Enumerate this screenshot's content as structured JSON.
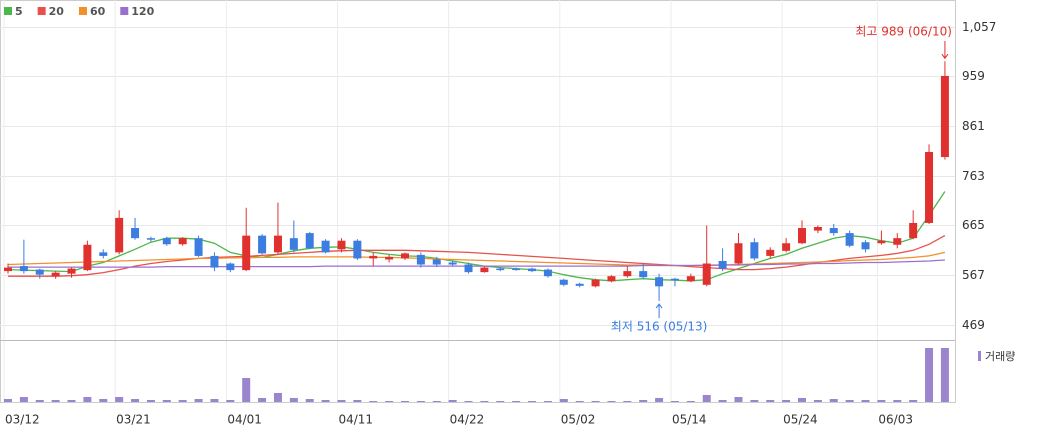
{
  "chart_data": {
    "type": "candlestick",
    "categories": [
      "03/12",
      null,
      null,
      null,
      null,
      null,
      null,
      "03/21",
      null,
      null,
      null,
      null,
      null,
      null,
      "04/01",
      null,
      null,
      null,
      null,
      null,
      null,
      "04/11",
      null,
      null,
      null,
      null,
      null,
      null,
      "04/22",
      null,
      null,
      null,
      null,
      null,
      null,
      "05/02",
      null,
      null,
      null,
      null,
      null,
      null,
      "05/14",
      null,
      null,
      null,
      null,
      null,
      null,
      "05/24",
      null,
      null,
      null,
      null,
      null,
      "06/03",
      null,
      null,
      null,
      null
    ],
    "open": [
      575,
      585,
      578,
      565,
      570,
      577,
      612,
      612,
      660,
      640,
      640,
      628,
      640,
      605,
      590,
      577,
      645,
      612,
      640,
      650,
      635,
      618,
      635,
      600,
      598,
      600,
      607,
      598,
      592,
      588,
      573,
      580,
      580,
      580,
      578,
      558,
      550,
      545,
      555,
      565,
      575,
      563,
      560,
      555,
      548,
      595,
      590,
      632,
      605,
      615,
      630,
      655,
      660,
      650,
      632,
      630,
      627,
      640,
      670,
      800
    ],
    "high": [
      590,
      637,
      580,
      575,
      582,
      635,
      618,
      695,
      680,
      643,
      643,
      642,
      645,
      612,
      592,
      700,
      648,
      710,
      675,
      652,
      638,
      640,
      638,
      612,
      607,
      612,
      612,
      603,
      596,
      592,
      585,
      583,
      582,
      582,
      580,
      560,
      552,
      560,
      567,
      585,
      590,
      570,
      562,
      570,
      665,
      620,
      650,
      640,
      622,
      640,
      675,
      665,
      668,
      655,
      636,
      655,
      650,
      695,
      825,
      989
    ],
    "low": [
      570,
      570,
      560,
      560,
      562,
      575,
      600,
      608,
      637,
      633,
      625,
      625,
      603,
      575,
      573,
      575,
      608,
      608,
      612,
      618,
      610,
      612,
      597,
      585,
      592,
      597,
      582,
      583,
      585,
      570,
      572,
      575,
      576,
      573,
      562,
      545,
      543,
      543,
      553,
      562,
      560,
      516,
      545,
      553,
      545,
      575,
      588,
      596,
      600,
      612,
      628,
      650,
      645,
      622,
      612,
      627,
      620,
      638,
      668,
      795
    ],
    "close": [
      582,
      575,
      568,
      572,
      580,
      627,
      605,
      680,
      640,
      637,
      628,
      640,
      605,
      582,
      577,
      645,
      610,
      645,
      617,
      620,
      612,
      635,
      600,
      605,
      603,
      610,
      588,
      588,
      588,
      573,
      582,
      577,
      578,
      575,
      565,
      548,
      546,
      558,
      565,
      575,
      563,
      545,
      558,
      565,
      590,
      580,
      630,
      600,
      617,
      630,
      660,
      662,
      650,
      625,
      618,
      635,
      640,
      670,
      810,
      960
    ],
    "up_color": "#e0312e",
    "down_color": "#3b7de0",
    "series": [
      {
        "name": "5",
        "color": "#4cb84c",
        "values": [
          578,
          577,
          576,
          575,
          574,
          585,
          592,
          605,
          618,
          632,
          640,
          640,
          638,
          630,
          612,
          605,
          602,
          608,
          615,
          620,
          622,
          623,
          618,
          612,
          608,
          605,
          604,
          600,
          595,
          590,
          585,
          582,
          580,
          578,
          575,
          568,
          562,
          558,
          556,
          558,
          560,
          558,
          557,
          556,
          558,
          570,
          580,
          590,
          600,
          608,
          620,
          630,
          640,
          645,
          642,
          635,
          630,
          640,
          685,
          732
        ]
      },
      {
        "name": "20",
        "color": "#e8504a",
        "values": [
          565,
          565,
          565,
          565,
          566,
          568,
          572,
          578,
          585,
          590,
          594,
          597,
          600,
          602,
          603,
          604,
          606,
          608,
          610,
          612,
          614,
          615,
          616,
          616,
          616,
          616,
          615,
          614,
          613,
          612,
          610,
          608,
          606,
          604,
          602,
          600,
          598,
          596,
          594,
          592,
          590,
          588,
          586,
          584,
          582,
          580,
          578,
          578,
          580,
          583,
          587,
          592,
          596,
          600,
          603,
          606,
          610,
          616,
          628,
          645
        ]
      },
      {
        "name": "60",
        "color": "#f2902a",
        "values": [
          588,
          589,
          590,
          591,
          592,
          593,
          594,
          595,
          596,
          597,
          598,
          599,
          600,
          600,
          601,
          601,
          602,
          602,
          603,
          603,
          603,
          603,
          603,
          602,
          602,
          601,
          600,
          599,
          598,
          597,
          596,
          595,
          594,
          593,
          592,
          591,
          590,
          589,
          588,
          587,
          587,
          586,
          586,
          586,
          587,
          587,
          588,
          589,
          590,
          591,
          592,
          593,
          594,
          596,
          597,
          598,
          600,
          602,
          605,
          612
        ]
      },
      {
        "name": "120",
        "color": "#9b6fd0",
        "values": [
          583,
          583,
          583,
          583,
          583,
          583,
          583,
          583,
          583,
          583,
          584,
          584,
          584,
          584,
          584,
          584,
          584,
          584,
          584,
          584,
          585,
          585,
          585,
          585,
          585,
          585,
          585,
          585,
          585,
          585,
          585,
          585,
          585,
          585,
          585,
          585,
          585,
          585,
          585,
          585,
          586,
          586,
          586,
          586,
          586,
          587,
          587,
          588,
          588,
          589,
          589,
          590,
          590,
          591,
          592,
          592,
          593,
          594,
          595,
          597
        ]
      }
    ],
    "volume": {
      "name": "거래량",
      "color": "#9b85cf",
      "values": [
        3,
        5,
        2,
        2,
        2,
        5,
        3,
        5,
        3,
        2,
        2,
        2,
        3,
        3,
        2,
        24,
        4,
        9,
        4,
        3,
        2,
        2,
        2,
        1,
        1,
        1,
        1,
        1,
        2,
        1,
        1,
        1,
        1,
        1,
        1,
        3,
        1,
        1,
        1,
        1,
        2,
        4,
        1,
        1,
        7,
        2,
        5,
        2,
        2,
        2,
        4,
        2,
        3,
        2,
        2,
        2,
        2,
        2,
        54,
        54
      ]
    },
    "ylim": [
      449,
      1094
    ],
    "yticks": [
      {
        "value": 1057,
        "label": "1,057"
      },
      959,
      861,
      763,
      665,
      567,
      469
    ],
    "grid": true,
    "annotations": [
      {
        "text": "최고 989 (06/10)",
        "index": 59,
        "kind": "high"
      },
      {
        "text": "최저 516 (05/13)",
        "index": 41,
        "kind": "low"
      }
    ]
  }
}
